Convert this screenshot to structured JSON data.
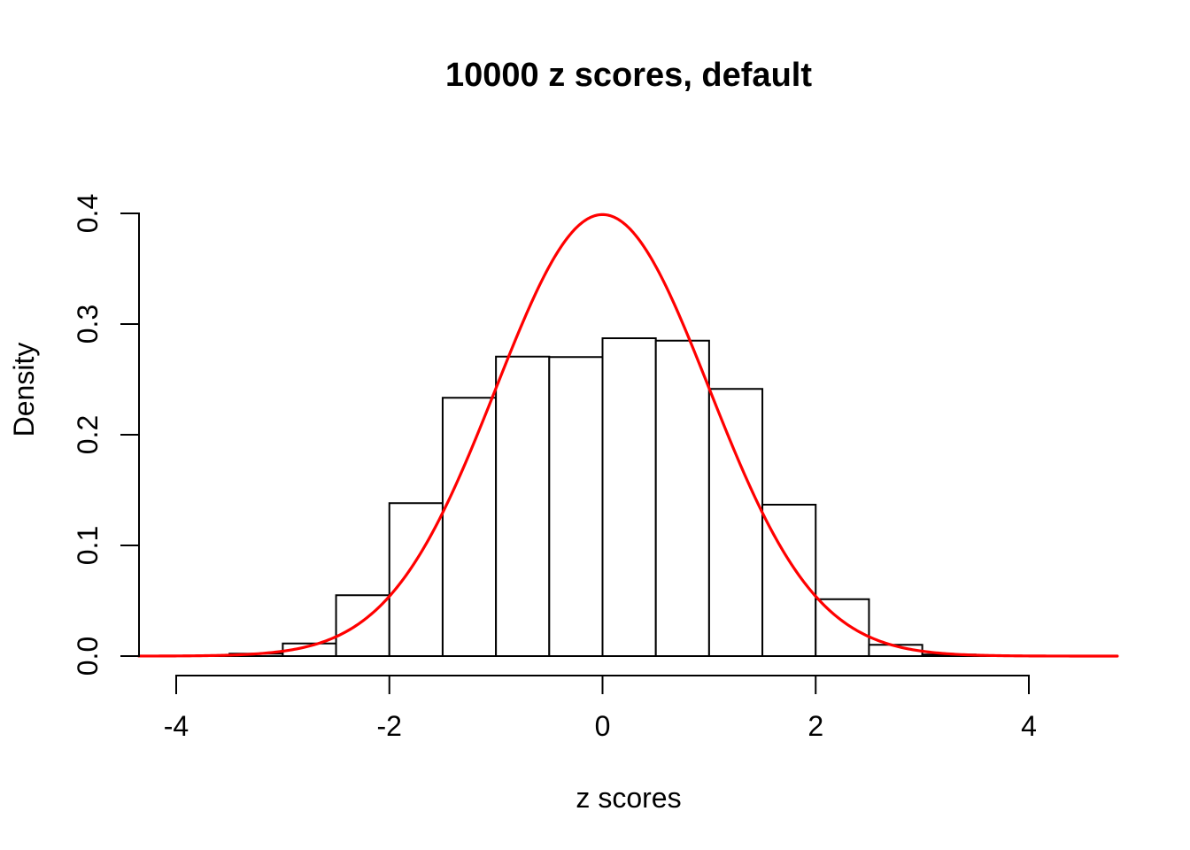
{
  "chart_data": {
    "type": "histogram",
    "title": "10000 z scores, default",
    "xlabel": "z scores",
    "ylabel": "Density",
    "x_tick_values": [
      -4,
      -2,
      0,
      2,
      4
    ],
    "x_tick_labels": [
      "-4",
      "-2",
      "0",
      "2",
      "4"
    ],
    "y_tick_values": [
      0,
      0.1,
      0.2,
      0.3,
      0.4
    ],
    "y_tick_labels": [
      "0.0",
      "0.1",
      "0.2",
      "0.3",
      "0.4"
    ],
    "xlim": [
      -4.35,
      4.84
    ],
    "ylim": [
      0,
      0.4
    ],
    "grid": false,
    "legend": false,
    "histogram": {
      "breaks": [
        -4,
        -3.5,
        -3,
        -2.5,
        -2,
        -1.5,
        -1,
        -0.5,
        0,
        0.5,
        1,
        1.5,
        2,
        2.5,
        3,
        3.5,
        4
      ],
      "densities": [
        0.0004,
        0.0022,
        0.0114,
        0.055,
        0.1382,
        0.2334,
        0.2706,
        0.2702,
        0.2872,
        0.285,
        0.2414,
        0.1368,
        0.0514,
        0.0102,
        0.0014,
        0.0004
      ],
      "bar_fill": "#ffffff",
      "bar_stroke": "#000000"
    },
    "curve": {
      "name": "standard-normal-density",
      "mean": 0,
      "sd": 1,
      "peak_density": 0.3989,
      "x_range": [
        -4.35,
        4.84
      ],
      "color": "#ff0000"
    },
    "axis_color": "#000000",
    "text_color": "#000000",
    "background": "#ffffff"
  }
}
